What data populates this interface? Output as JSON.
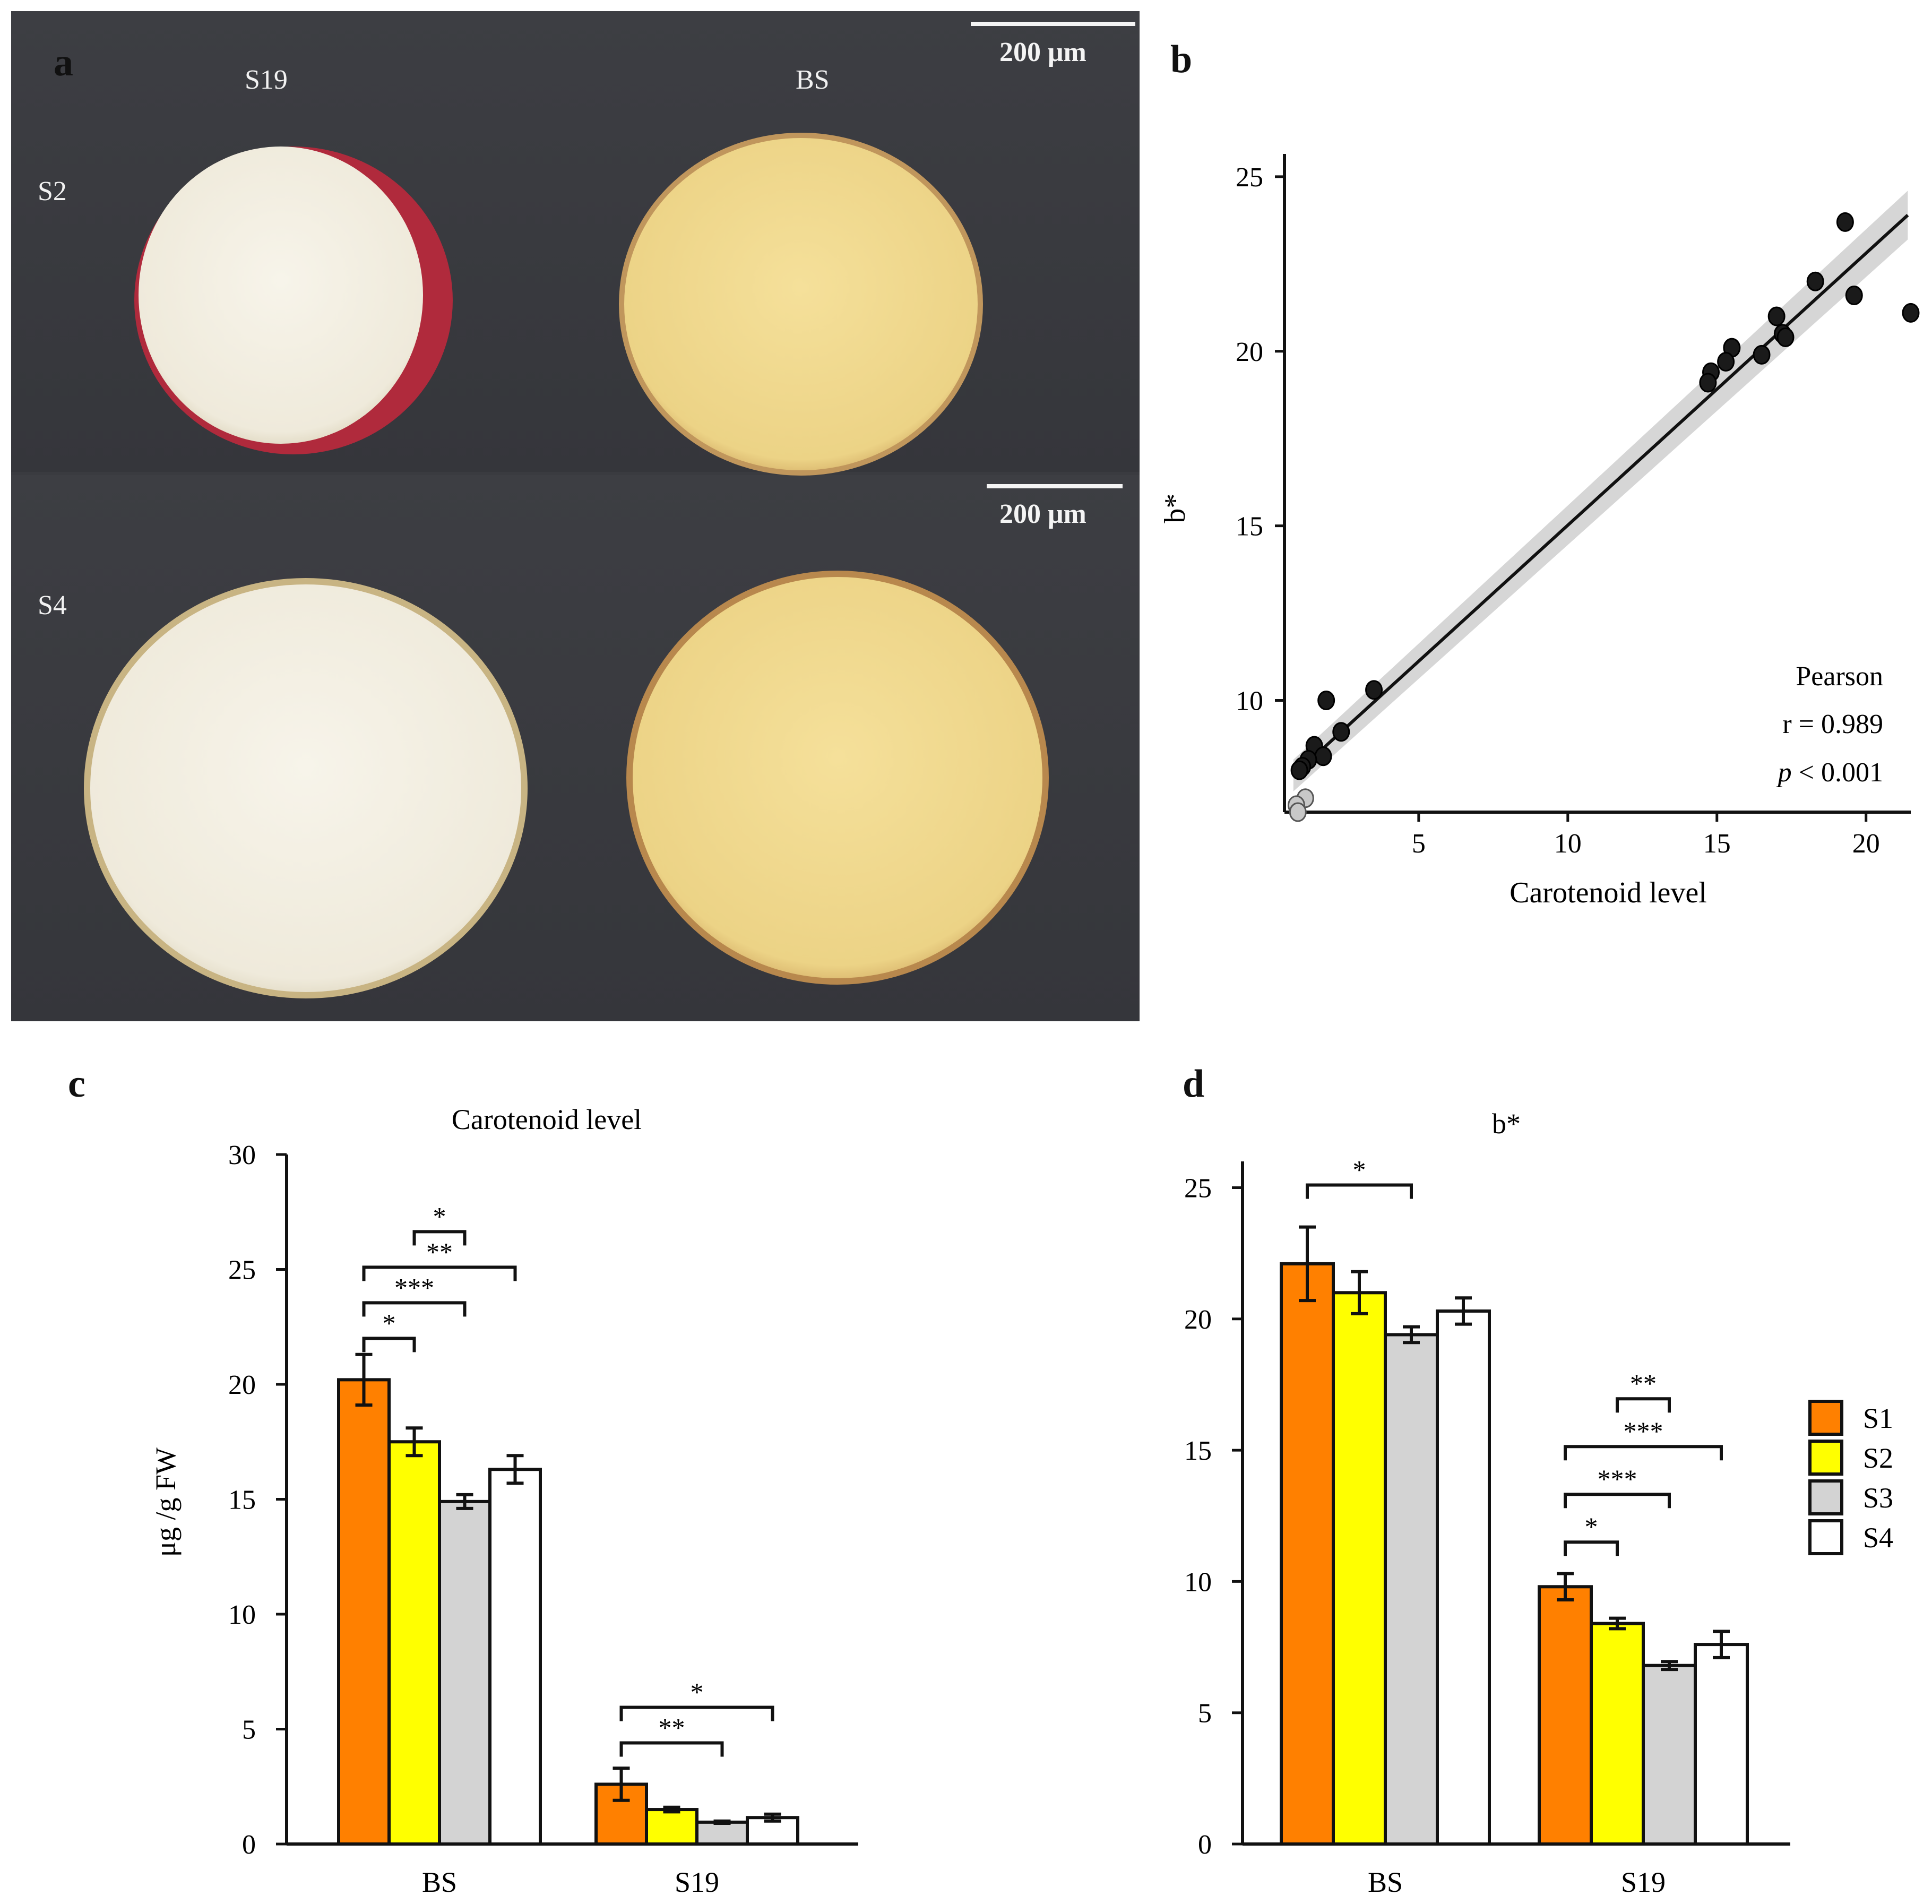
{
  "panels": {
    "a": {
      "letter": "a",
      "col_left": "S19",
      "col_right": "BS",
      "row_top": "S2",
      "row_bottom": "S4",
      "scale_top": "200 μm",
      "scale_bottom": "200 μm",
      "colors": {
        "s19_flesh": "#f3efe2",
        "bs_flesh": "#f0d98a",
        "s19_skin": "#b3263b",
        "bs_skin": "#c8965a"
      }
    },
    "b": {
      "letter": "b",
      "stats": {
        "method": "Pearson",
        "r": "r = 0.989",
        "p_italic": "p",
        "p_rest": " < 0.001"
      }
    },
    "c": {
      "letter": "c"
    },
    "d": {
      "letter": "d"
    }
  },
  "legend": [
    {
      "name": "S1",
      "color": "#ff8000"
    },
    {
      "name": "S2",
      "color": "#ffff00"
    },
    {
      "name": "S3",
      "color": "#d3d3d3"
    },
    {
      "name": "S4",
      "color": "#ffffff"
    }
  ],
  "chart_data": [
    {
      "id": "b",
      "type": "scatter",
      "title": "",
      "xlabel": "Carotenoid level",
      "ylabel": "b*",
      "xlim": [
        0.5,
        21.5
      ],
      "ylim": [
        6.8,
        25.5
      ],
      "xticks": [
        5,
        10,
        15,
        20
      ],
      "yticks": [
        10,
        15,
        20,
        25
      ],
      "fit": {
        "x": [
          0.8,
          21.4
        ],
        "y": [
          7.85,
          23.9
        ],
        "band_halfwidth": 0.35
      },
      "series": [
        {
          "name": "dark",
          "color": "#1a1a1a",
          "points": [
            [
              19.3,
              23.7
            ],
            [
              18.3,
              22.0
            ],
            [
              19.6,
              21.6
            ],
            [
              21.5,
              21.1
            ],
            [
              17.0,
              21.0
            ],
            [
              17.2,
              20.5
            ],
            [
              17.3,
              20.4
            ],
            [
              16.5,
              19.9
            ],
            [
              15.5,
              20.1
            ],
            [
              15.3,
              19.7
            ],
            [
              14.8,
              19.4
            ],
            [
              14.7,
              19.1
            ],
            [
              3.5,
              10.3
            ],
            [
              1.9,
              10.0
            ],
            [
              2.4,
              9.1
            ],
            [
              1.5,
              8.7
            ],
            [
              1.8,
              8.4
            ],
            [
              1.3,
              8.3
            ],
            [
              1.1,
              8.1
            ],
            [
              1.0,
              8.0
            ]
          ]
        },
        {
          "name": "light",
          "color": "#c8c8c8",
          "points": [
            [
              1.2,
              7.2
            ],
            [
              0.9,
              7.0
            ],
            [
              0.95,
              6.8
            ]
          ]
        }
      ],
      "stats_position": "bottom-right"
    },
    {
      "id": "c",
      "type": "bar",
      "title": "Carotenoid level",
      "xlabel": "",
      "ylabel": "μg /g FW",
      "ylim": [
        0,
        30
      ],
      "yticks": [
        0,
        5,
        10,
        15,
        20,
        25,
        30
      ],
      "categories": [
        "BS",
        "S19"
      ],
      "series": [
        {
          "name": "S1",
          "values": [
            20.2,
            2.6
          ],
          "errors": [
            1.1,
            0.7
          ]
        },
        {
          "name": "S2",
          "values": [
            17.5,
            1.5
          ],
          "errors": [
            0.6,
            0.1
          ]
        },
        {
          "name": "S3",
          "values": [
            14.9,
            0.95
          ],
          "errors": [
            0.3,
            0.05
          ]
        },
        {
          "name": "S4",
          "values": [
            16.3,
            1.15
          ],
          "errors": [
            0.6,
            0.15
          ]
        }
      ],
      "significance": [
        {
          "group": 0,
          "from": 0,
          "to": 1,
          "level": 1,
          "label": "*"
        },
        {
          "group": 0,
          "from": 0,
          "to": 2,
          "level": 2,
          "label": "***"
        },
        {
          "group": 0,
          "from": 0,
          "to": 3,
          "level": 3,
          "label": "**"
        },
        {
          "group": 0,
          "from": 1,
          "to": 2,
          "level": 4,
          "label": "*"
        },
        {
          "group": 1,
          "from": 0,
          "to": 2,
          "level": 1,
          "label": "**"
        },
        {
          "group": 1,
          "from": 0,
          "to": 3,
          "level": 2,
          "label": "*"
        }
      ]
    },
    {
      "id": "d",
      "type": "bar",
      "title": "b*",
      "xlabel": "",
      "ylabel": "",
      "ylim": [
        0,
        26
      ],
      "yticks": [
        0,
        5,
        10,
        15,
        20,
        25
      ],
      "categories": [
        "BS",
        "S19"
      ],
      "series": [
        {
          "name": "S1",
          "values": [
            22.1,
            9.8
          ],
          "errors": [
            1.4,
            0.5
          ]
        },
        {
          "name": "S2",
          "values": [
            21.0,
            8.4
          ],
          "errors": [
            0.8,
            0.2
          ]
        },
        {
          "name": "S3",
          "values": [
            19.4,
            6.8
          ],
          "errors": [
            0.3,
            0.15
          ]
        },
        {
          "name": "S4",
          "values": [
            20.3,
            7.6
          ],
          "errors": [
            0.5,
            0.5
          ]
        }
      ],
      "significance": [
        {
          "group": 0,
          "from": 0,
          "to": 2,
          "level": 1,
          "label": "*"
        },
        {
          "group": 1,
          "from": 0,
          "to": 1,
          "level": 1,
          "label": "*"
        },
        {
          "group": 1,
          "from": 0,
          "to": 2,
          "level": 2,
          "label": "***"
        },
        {
          "group": 1,
          "from": 0,
          "to": 3,
          "level": 3,
          "label": "***"
        },
        {
          "group": 1,
          "from": 1,
          "to": 2,
          "level": 4,
          "label": "**"
        }
      ],
      "legend_position": "right"
    }
  ]
}
